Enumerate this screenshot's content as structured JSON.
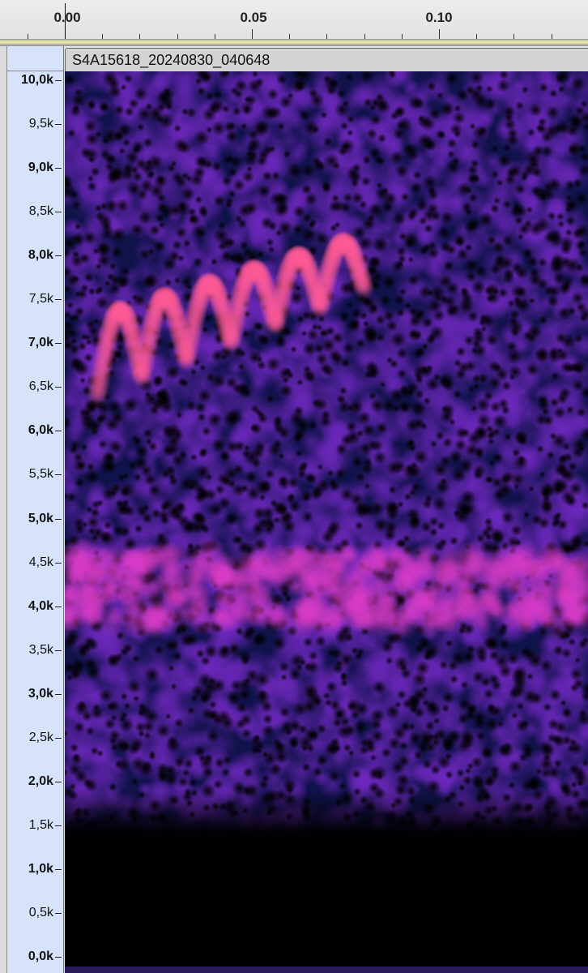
{
  "ruler": {
    "labels": [
      "0.00",
      "0.05",
      "0.10"
    ],
    "unit": "seconds",
    "cursor_at": 0.0
  },
  "clip": {
    "title": "S4A15618_20240830_040648"
  },
  "frequency_axis": {
    "labels": [
      "10,0k",
      "9,5k",
      "9,0k",
      "8,5k",
      "8,0k",
      "7,5k",
      "7,0k",
      "6,5k",
      "6,0k",
      "5,5k",
      "5,0k",
      "4,5k",
      "4,0k",
      "3,5k",
      "3,0k",
      "2,5k",
      "2,0k",
      "1,5k",
      "1,0k",
      "0,5k",
      "0,0k"
    ]
  },
  "spectrogram": {
    "view": "spectrogram",
    "colormap": [
      "#000000",
      "#0d1240",
      "#2a2a8a",
      "#7a2bc0",
      "#c23ad0",
      "#ff6a8a"
    ],
    "time_range_s": [
      0.0,
      0.14
    ],
    "freq_range_hz": [
      0,
      10000
    ],
    "features": [
      {
        "type": "tonal band",
        "freq_hz": [
          3800,
          4600
        ],
        "time_s": [
          0.0,
          0.14
        ]
      },
      {
        "type": "frequency-modulated call",
        "freq_hz": [
          6200,
          8100
        ],
        "time_s": [
          0.008,
          0.078
        ]
      },
      {
        "type": "high-pass cutoff",
        "freq_hz": [
          0,
          1500
        ]
      }
    ]
  }
}
